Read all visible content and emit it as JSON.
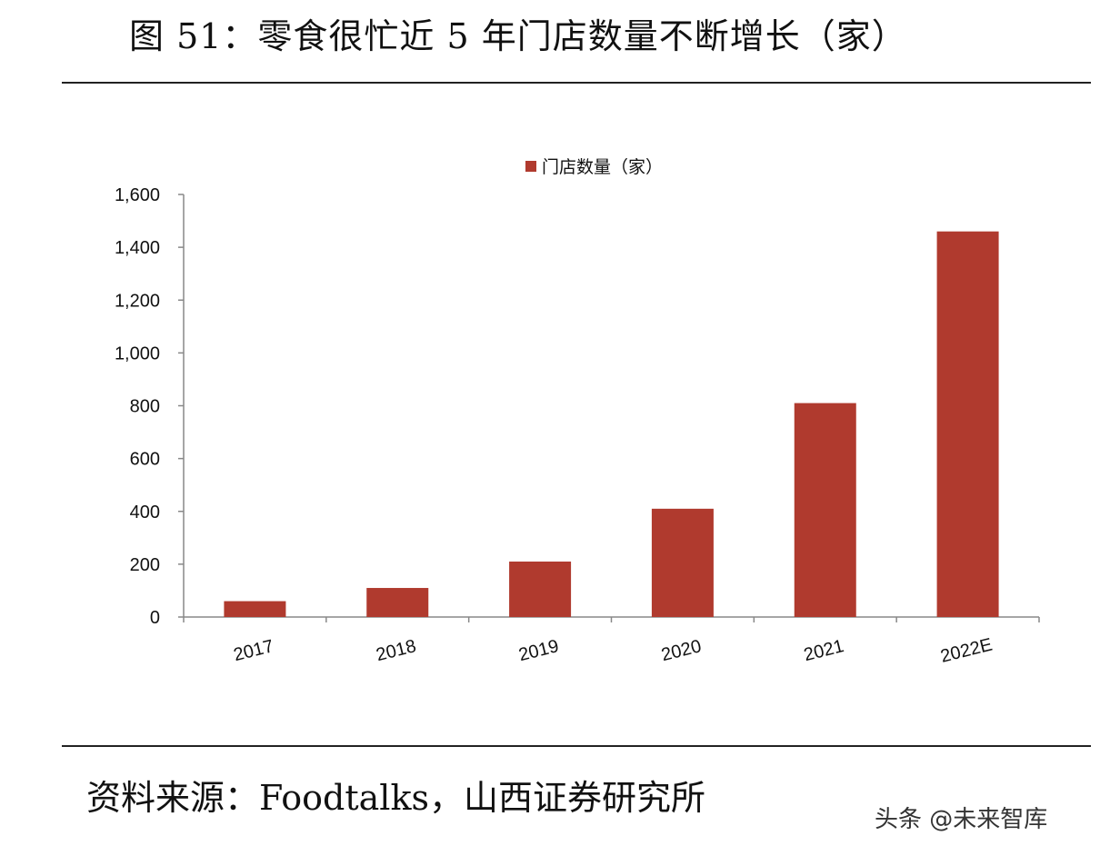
{
  "figure_title": "图 51：零食很忙近 5 年门店数量不断增长（家）",
  "source_note": "资料来源：Foodtalks，山西证券研究所",
  "watermark": "头条 @未来智库",
  "colors": {
    "bar": "#B03A2E",
    "axis": "#888888",
    "text": "#111111"
  },
  "chart_data": {
    "type": "bar",
    "categories": [
      "2017",
      "2018",
      "2019",
      "2020",
      "2021",
      "2022E"
    ],
    "series": [
      {
        "name": "门店数量（家）",
        "values": [
          60,
          110,
          210,
          410,
          810,
          1460
        ]
      }
    ],
    "yticks": [
      "0",
      "200",
      "400",
      "600",
      "800",
      "1,000",
      "1,200",
      "1,400",
      "1,600"
    ],
    "ylim": [
      0,
      1600
    ],
    "title": "",
    "xlabel": "",
    "ylabel": "",
    "legend_position": "top-center",
    "grid": false
  }
}
